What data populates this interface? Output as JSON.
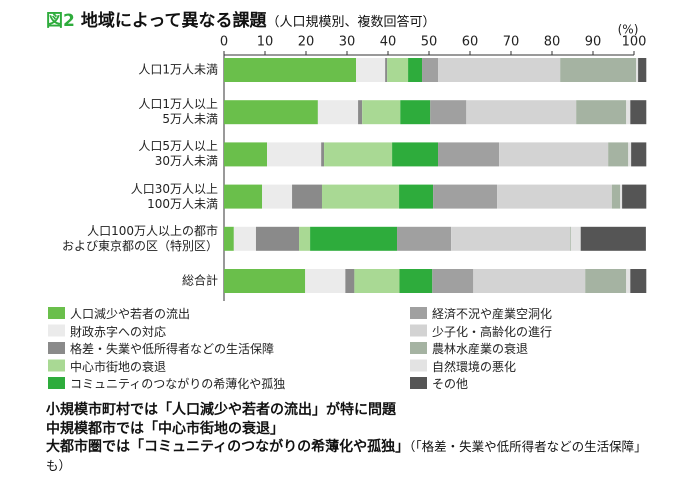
{
  "figure_label": "図2",
  "chart_data": {
    "type": "stacked-barh",
    "title": "地域によって異なる課題",
    "subtitle": "（人口規模別、複数回答可）",
    "unit": "(%)",
    "categories": [
      "人口1万人未満",
      "人口1万人以上\n5万人未満",
      "人口5万人以上\n30万人未満",
      "人口30万人以上\n100万人未満",
      "人口100万人以上の都市\nおよび東京都の区（特別区）",
      "総合計"
    ],
    "xlim": [
      0,
      100
    ],
    "xticks": [
      0,
      10,
      20,
      30,
      40,
      50,
      60,
      70,
      80,
      90,
      100
    ],
    "series": [
      {
        "name": "人口減少や若者の流出",
        "color": "#6abf4b",
        "values": [
          32.2,
          22.9,
          10.5,
          9.3,
          2.4,
          19.8
        ]
      },
      {
        "name": "財政赤字への対応",
        "color": "#ebebeb",
        "values": [
          7.1,
          9.8,
          13.2,
          7.3,
          5.4,
          9.8
        ]
      },
      {
        "name": "格差・失業や低所得者などの生活保障",
        "color": "#8a8a8a",
        "values": [
          0.5,
          1,
          0.7,
          7.3,
          10.5,
          2.2
        ]
      },
      {
        "name": "中心市街地の衰退",
        "color": "#a9d994",
        "values": [
          5.1,
          9.3,
          16.6,
          18.8,
          2.7,
          11
        ]
      },
      {
        "name": "コミュニティのつながりの希薄化や孤独",
        "color": "#2eac3c",
        "values": [
          3.4,
          7.3,
          11.2,
          8.3,
          21.2,
          8
        ]
      },
      {
        "name": "経済不況や産業空洞化",
        "color": "#a0a0a0",
        "values": [
          3.9,
          8.8,
          14.9,
          15.6,
          13.2,
          10
        ]
      },
      {
        "name": "少子化・高齢化の進行",
        "color": "#d3d3d3",
        "values": [
          29.8,
          26.8,
          26.6,
          28,
          29,
          27.3
        ]
      },
      {
        "name": "農林水産業の衰退",
        "color": "#a5b3a2",
        "values": [
          18.5,
          12.2,
          4.9,
          2,
          0.2,
          10
        ]
      },
      {
        "name": "自然環境の悪化",
        "color": "#e3e3e3",
        "values": [
          0.5,
          1,
          0.7,
          0.5,
          2.4,
          1
        ]
      },
      {
        "name": "その他",
        "color": "#555555",
        "values": [
          2,
          3.9,
          3.7,
          5.9,
          15.9,
          3.9
        ]
      }
    ]
  },
  "footer": {
    "lines": [
      "小規模市町村では「人口減少や若者の流出」が特に問題",
      "中規模都市では「中心市街地の衰退」",
      "大都市圏では「コミュニティのつながりの希薄化や孤独」"
    ],
    "note": "（「格差・失業や低所得者などの生活保障」も）"
  }
}
